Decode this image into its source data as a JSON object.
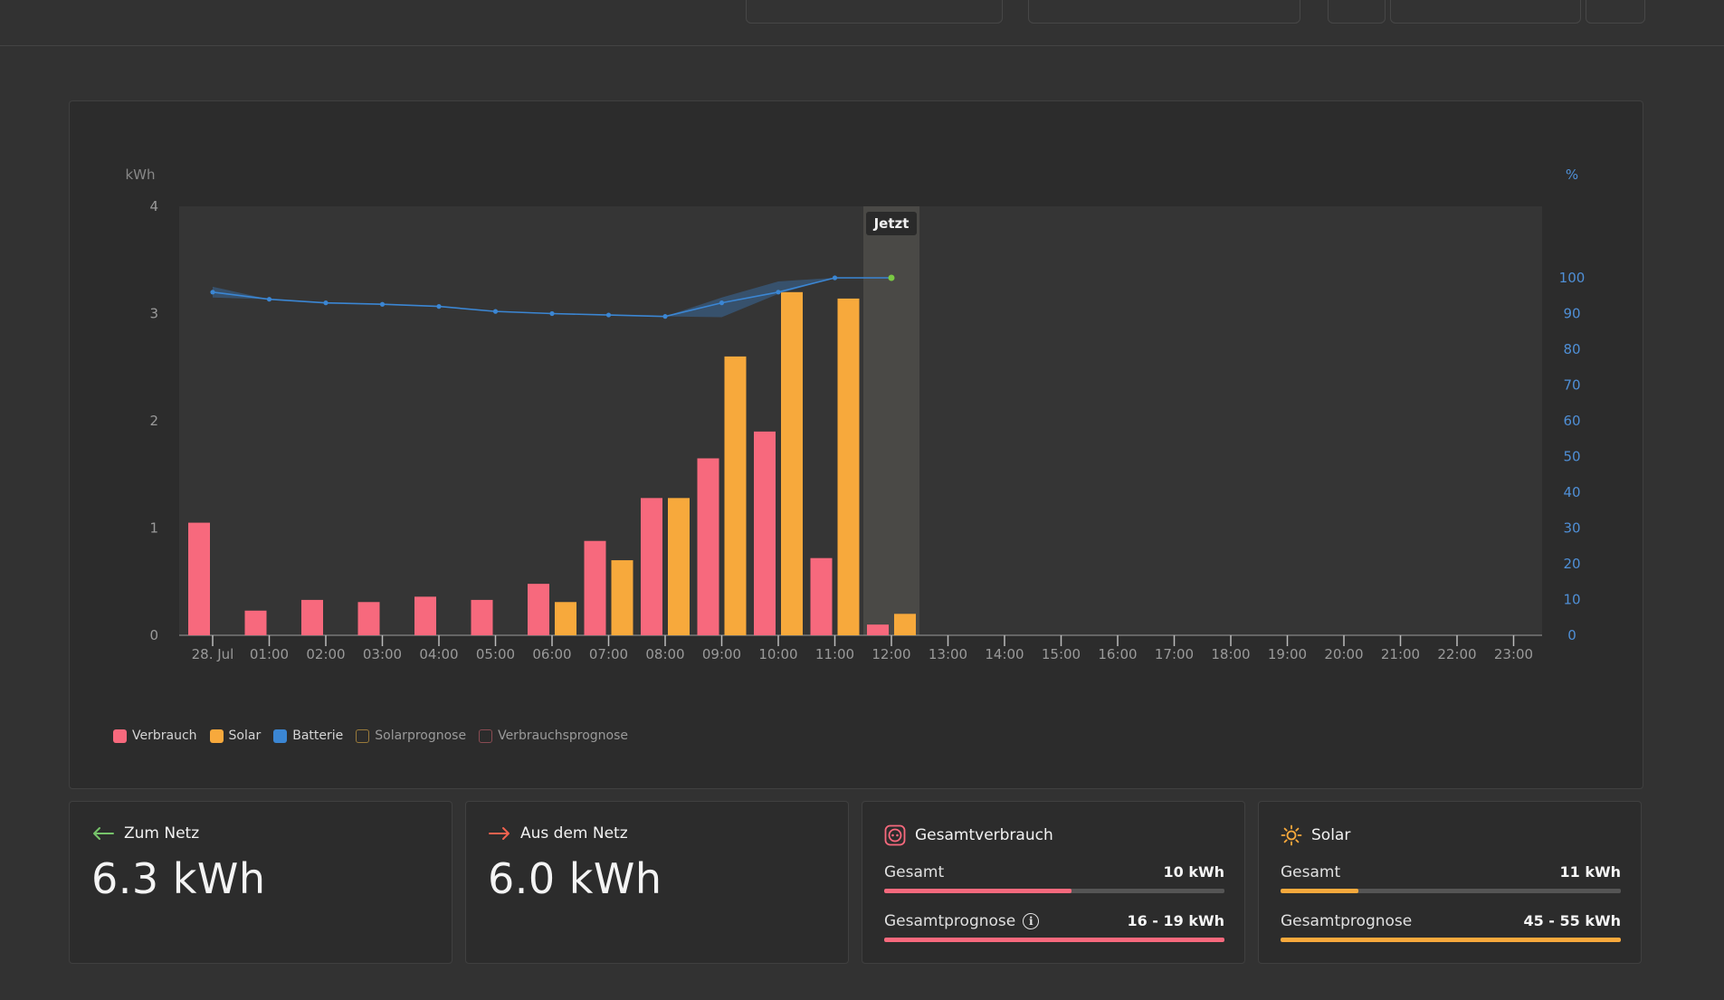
{
  "chart_data": {
    "type": "bar",
    "y_left_label": "kWh",
    "y_right_label": "%",
    "y_left_ticks": [
      "0",
      "1",
      "2",
      "3",
      "4"
    ],
    "y_left_range": [
      0,
      4
    ],
    "y_right_ticks": [
      "0",
      "10",
      "20",
      "30",
      "40",
      "50",
      "60",
      "70",
      "80",
      "90",
      "100"
    ],
    "y_right_range": [
      0,
      120
    ],
    "x_ticks": [
      "28. Jul",
      "01:00",
      "02:00",
      "03:00",
      "04:00",
      "05:00",
      "06:00",
      "07:00",
      "08:00",
      "09:00",
      "10:00",
      "11:00",
      "12:00",
      "13:00",
      "14:00",
      "15:00",
      "16:00",
      "17:00",
      "18:00",
      "19:00",
      "20:00",
      "21:00",
      "22:00",
      "23:00"
    ],
    "now_label": "Jetzt",
    "now_hour": 12,
    "series": [
      {
        "name": "Verbrauch",
        "color": "#f7697d",
        "values": [
          1.05,
          0.23,
          0.33,
          0.31,
          0.36,
          0.33,
          0.48,
          0.88,
          1.28,
          1.65,
          1.9,
          0.72,
          0.1,
          null,
          null,
          null,
          null,
          null,
          null,
          null,
          null,
          null,
          null,
          null
        ]
      },
      {
        "name": "Solar",
        "color": "#f7a93c",
        "values": [
          null,
          null,
          null,
          null,
          null,
          null,
          0.31,
          0.7,
          1.28,
          2.6,
          3.2,
          3.14,
          0.2,
          null,
          null,
          null,
          null,
          null,
          null,
          null,
          null,
          null,
          null,
          null
        ]
      }
    ],
    "battery": {
      "name": "Batterie",
      "color": "#3b86d3",
      "points": [
        [
          0,
          96
        ],
        [
          1,
          94
        ],
        [
          2,
          93
        ],
        [
          3,
          92.6
        ],
        [
          4,
          92
        ],
        [
          5,
          90.6
        ],
        [
          6,
          90
        ],
        [
          7,
          89.6
        ],
        [
          8,
          89.2
        ],
        [
          9,
          93
        ],
        [
          10,
          96
        ],
        [
          11,
          100
        ],
        [
          12,
          100
        ]
      ],
      "band": [
        [
          0,
          97.5,
          94.5
        ],
        [
          1,
          94,
          94
        ],
        [
          8,
          89.2,
          89.2
        ],
        [
          9,
          94.5,
          89
        ],
        [
          10,
          99,
          95.5
        ],
        [
          11,
          100,
          100
        ]
      ]
    }
  },
  "legend": [
    {
      "label": "Verbrauch",
      "color": "#f7697d",
      "filled": true
    },
    {
      "label": "Solar",
      "color": "#f7a93c",
      "filled": true
    },
    {
      "label": "Batterie",
      "color": "#3b86d3",
      "filled": true
    },
    {
      "label": "Solarprognose",
      "color": "#9a7a3a",
      "filled": false
    },
    {
      "label": "Verbrauchsprognose",
      "color": "#8a4b52",
      "filled": false
    }
  ],
  "cards": {
    "to_grid": {
      "title": "Zum Netz",
      "value": "6.3 kWh",
      "arrow_color": "#76c36a"
    },
    "from_grid": {
      "title": "Aus dem Netz",
      "value": "6.0 kWh",
      "arrow_color": "#f2624f"
    },
    "consumption": {
      "title": "Gesamtverbrauch",
      "icon_color": "#f7697d",
      "total_label": "Gesamt",
      "total_value": "10 kWh",
      "total_fill": 0.55,
      "forecast_label": "Gesamtprognose",
      "forecast_value": "16 - 19 kWh",
      "forecast_fill": 1.0,
      "bar_color": "#f7697d"
    },
    "solar": {
      "title": "Solar",
      "icon_color": "#f7a93c",
      "total_label": "Gesamt",
      "total_value": "11 kWh",
      "total_fill": 0.23,
      "forecast_label": "Gesamtprognose",
      "forecast_value": "45 - 55 kWh",
      "forecast_fill": 1.0,
      "bar_color": "#f7a93c"
    }
  }
}
